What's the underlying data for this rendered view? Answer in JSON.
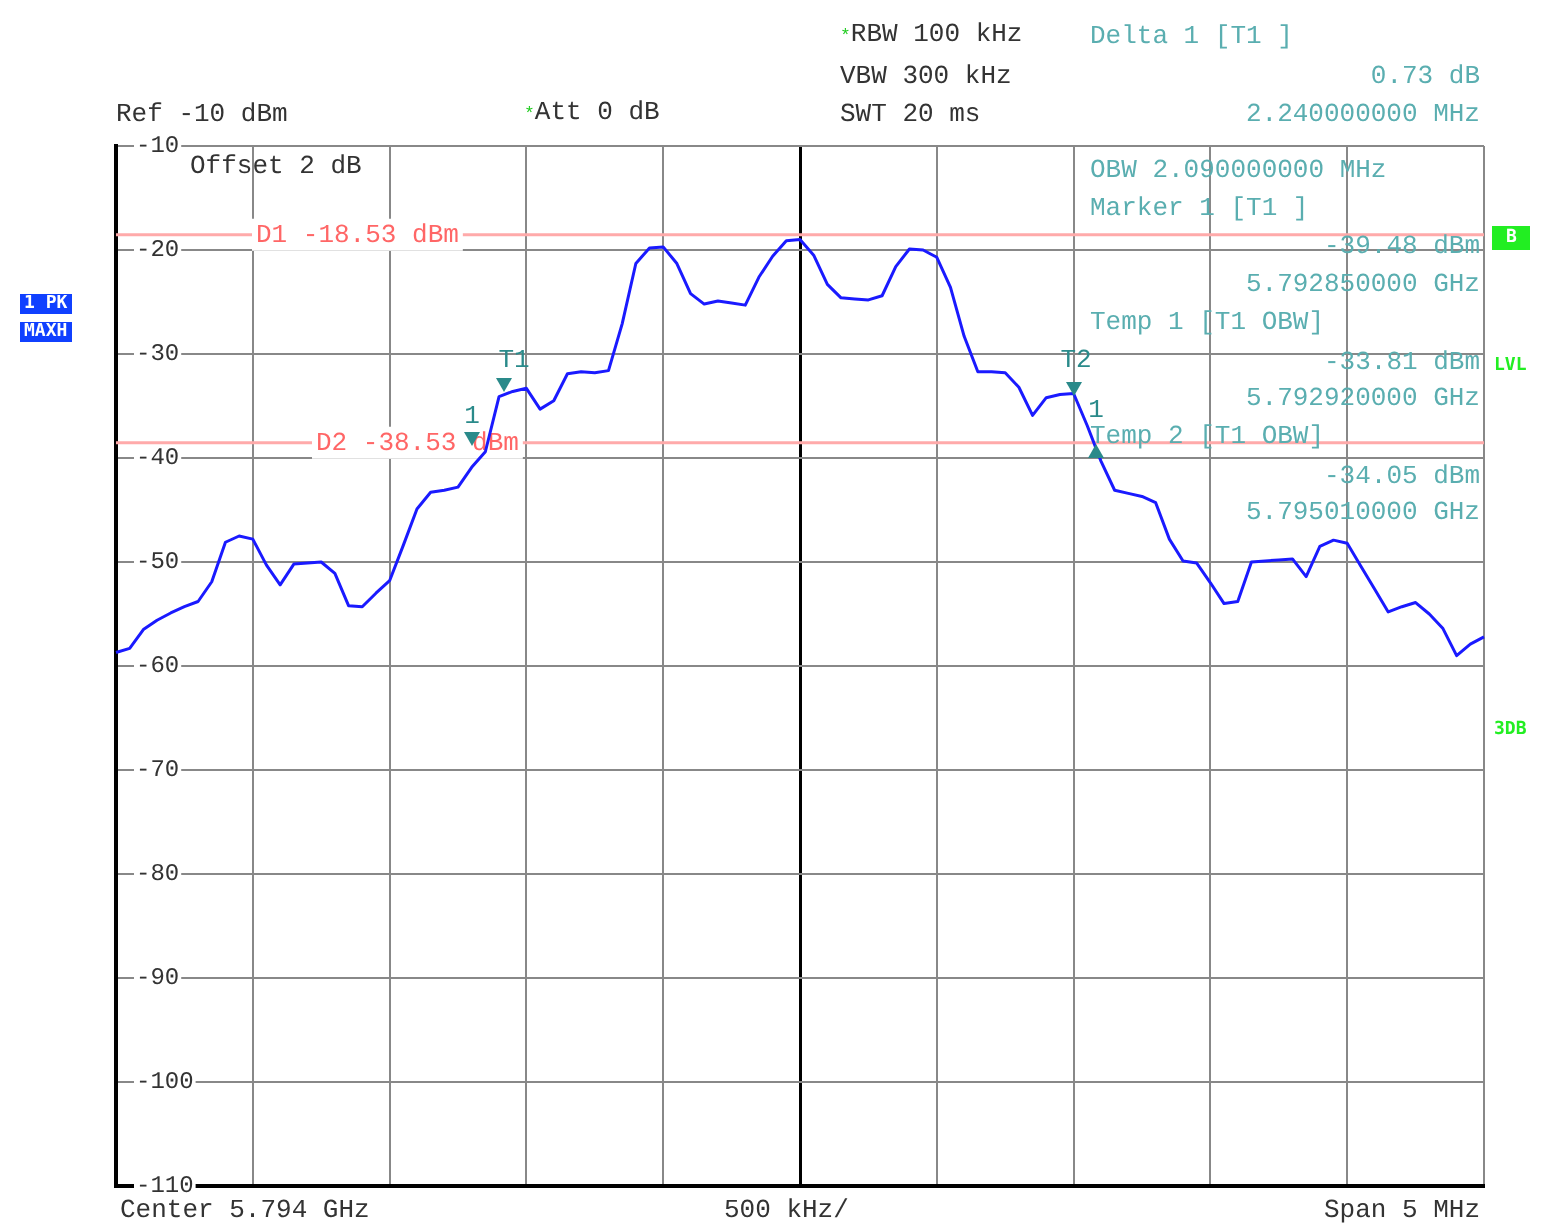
{
  "chart_data": {
    "type": "line",
    "categories": [
      null,
      null,
      null,
      null,
      null,
      null,
      null,
      null,
      null,
      null,
      null,
      null,
      null,
      null,
      null,
      null,
      null,
      null,
      null,
      null,
      null,
      null,
      null,
      null,
      null,
      null,
      null,
      null,
      null,
      null,
      null,
      null,
      null,
      null,
      null,
      null,
      null,
      null,
      null,
      null,
      null,
      null,
      null,
      null,
      null,
      null,
      null,
      null,
      null,
      null,
      null,
      null,
      null,
      null,
      null,
      null,
      null,
      null,
      null,
      null,
      null,
      null,
      null,
      null,
      null,
      null,
      null,
      null,
      null,
      null,
      null,
      null,
      null,
      null,
      null,
      null,
      null,
      null,
      null,
      null,
      null,
      null,
      null,
      null,
      null,
      null,
      null,
      null,
      null,
      null,
      null,
      null,
      null,
      null,
      null,
      null,
      null,
      null,
      null,
      null,
      null
    ],
    "series": [
      {
        "color": "#1a1aff",
        "values": [
          -58.7,
          -58.3,
          -56.5,
          -55.6,
          -54.9,
          -54.3,
          -53.8,
          -51.9,
          -48.1,
          -47.5,
          -47.8,
          -50.3,
          -52.2,
          -50.2,
          -50.1,
          -50.0,
          -51.1,
          -54.2,
          -54.3,
          -53.0,
          -51.8,
          -48.4,
          -44.9,
          -43.3,
          -43.1,
          -42.8,
          -40.9,
          -39.4,
          -34.1,
          -33.6,
          -33.3,
          -35.3,
          -34.5,
          -31.9,
          -31.7,
          -31.8,
          -31.6,
          -27.1,
          -21.3,
          -19.8,
          -19.7,
          -21.3,
          -24.2,
          -25.2,
          -24.9,
          -25.1,
          -25.3,
          -22.6,
          -20.6,
          -19.1,
          -19.0,
          -20.5,
          -23.3,
          -24.6,
          -24.7,
          -24.8,
          -24.4,
          -21.6,
          -19.9,
          -20.0,
          -20.7,
          -23.6,
          -28.3,
          -31.7,
          -31.7,
          -31.8,
          -33.2,
          -35.9,
          -34.2,
          -33.9,
          -33.8,
          -36.9,
          -40.3,
          -43.1,
          -43.4,
          -43.7,
          -44.3,
          -47.8,
          -49.9,
          -50.1,
          -52.0,
          -54.0,
          -53.8,
          -50.0,
          -49.9,
          -49.8,
          -49.7,
          -51.4,
          -48.5,
          -47.9,
          -48.2,
          -50.4,
          -52.6,
          -54.8,
          -54.3,
          -53.9,
          -55.0,
          -56.4,
          -59.0,
          -57.9,
          -57.2
        ]
      }
    ],
    "ylim": [
      -110,
      -10
    ],
    "yticks": [
      -110,
      -100,
      -90,
      -80,
      -70,
      -60,
      -50,
      -40,
      -30,
      -20,
      -10
    ],
    "grid": true,
    "legend": false,
    "marker": "none",
    "line_style": "solid",
    "ref_lines": [
      {
        "axis": "y",
        "value": -18.53,
        "label": "D1 -18.53 dBm",
        "color": "#ffaaaa"
      },
      {
        "axis": "y",
        "value": -38.53,
        "label": "D2 -38.53 dBm",
        "color": "#ffaaaa"
      }
    ],
    "annotations": [
      "*RBW 100 kHz",
      "VBW 300 kHz",
      "SWT 20 ms",
      "Ref -10 dBm",
      "*Att 0 dB",
      "Delta 1 [T1 ]",
      "0.73 dB",
      "2.240000000 MHz",
      "Offset 2 dB",
      "OBW 2.090000000 MHz",
      "Marker 1 [T1 ]",
      "-39.48 dBm",
      "5.792850000 GHz",
      "Temp 1 [T1 OBW]",
      "-33.81 dBm",
      "5.792920000 GHz",
      "Temp 2 [T1 OBW]",
      "-34.05 dBm",
      "5.795010000 GHz",
      "1 PK",
      "MAXH",
      "B",
      "LVL",
      "3DB",
      "Center 5.794 GHz",
      "500 kHz/",
      "Span 5 MHz",
      "T1",
      "1",
      "T2",
      "1"
    ]
  }
}
